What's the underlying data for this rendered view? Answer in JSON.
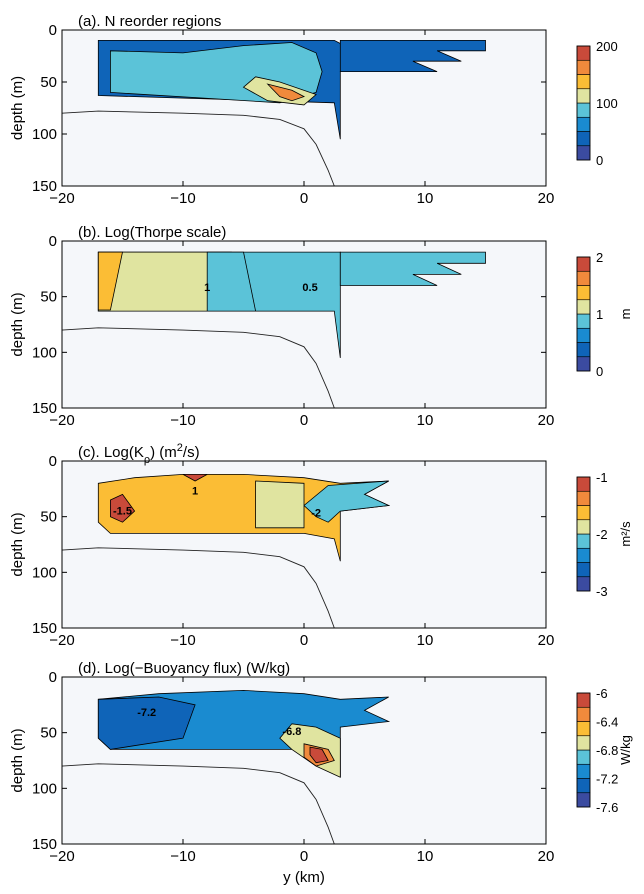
{
  "chart_data": [
    {
      "type": "contour",
      "title": "(a). N reorder regions",
      "ylabel": "depth (m)",
      "xlabel": "",
      "xlim": [
        -20,
        20
      ],
      "ylim": [
        0,
        150
      ],
      "y_reversed": true,
      "xticks": [
        -20,
        -10,
        0,
        10,
        20
      ],
      "yticks": [
        0,
        50,
        100,
        150
      ],
      "colorbar": {
        "ticks": [
          "0",
          "100",
          "200"
        ],
        "range": [
          0,
          200
        ],
        "label": ""
      },
      "contour_labels": [],
      "regions": [
        {
          "level": 40,
          "points": [
            [
              -17,
              10
            ],
            [
              2.5,
              10
            ],
            [
              5,
              25
            ],
            [
              3,
              40
            ],
            [
              3,
              105
            ],
            [
              2.5,
              70
            ],
            [
              -17,
              63
            ]
          ]
        },
        {
          "level": 40,
          "points": [
            [
              3,
              10
            ],
            [
              15,
              10
            ],
            [
              15,
              20
            ],
            [
              11,
              20
            ],
            [
              13,
              30
            ],
            [
              9,
              30
            ],
            [
              11,
              40
            ],
            [
              3,
              40
            ]
          ]
        },
        {
          "level": 80,
          "points": [
            [
              -16,
              20
            ],
            [
              -10,
              22
            ],
            [
              -5,
              15
            ],
            [
              -1,
              12
            ],
            [
              1,
              22
            ],
            [
              1.5,
              40
            ],
            [
              1,
              60
            ],
            [
              -2,
              70
            ],
            [
              -16,
              60
            ]
          ]
        },
        {
          "level": 120,
          "points": [
            [
              -4,
              45
            ],
            [
              -2,
              50
            ],
            [
              1,
              62
            ],
            [
              0,
              72
            ],
            [
              -3,
              68
            ],
            [
              -5,
              55
            ]
          ]
        },
        {
          "level": 160,
          "points": [
            [
              -3,
              52
            ],
            [
              -1,
              58
            ],
            [
              0,
              64
            ],
            [
              -1,
              68
            ],
            [
              -2,
              64
            ]
          ]
        }
      ],
      "bathymetry": [
        [
          -20,
          80
        ],
        [
          -17,
          78
        ],
        [
          -10,
          80
        ],
        [
          -5,
          82
        ],
        [
          -2,
          86
        ],
        [
          0,
          95
        ],
        [
          1,
          110
        ],
        [
          2,
          135
        ],
        [
          2.5,
          150
        ]
      ]
    },
    {
      "type": "contour",
      "title": "(b). Log(Thorpe scale)",
      "ylabel": "depth (m)",
      "xlabel": "",
      "xlim": [
        -20,
        20
      ],
      "ylim": [
        0,
        150
      ],
      "y_reversed": true,
      "xticks": [
        -20,
        -10,
        0,
        10,
        20
      ],
      "yticks": [
        0,
        50,
        100,
        150
      ],
      "colorbar": {
        "ticks": [
          "0",
          "1",
          "2"
        ],
        "range": [
          0,
          2
        ],
        "label": "m"
      },
      "contour_labels": [
        {
          "text": "1",
          "x": -8,
          "y": 45
        },
        {
          "text": "0.5",
          "x": 0.5,
          "y": 45
        }
      ],
      "regions": [
        {
          "level": 0.75,
          "points": [
            [
              -17,
              10
            ],
            [
              3,
              10
            ],
            [
              3,
              105
            ],
            [
              2.5,
              63
            ],
            [
              -17,
              63
            ]
          ]
        },
        {
          "level": 0.75,
          "points": [
            [
              3,
              10
            ],
            [
              15,
              10
            ],
            [
              15,
              20
            ],
            [
              11,
              20
            ],
            [
              13,
              30
            ],
            [
              9,
              30
            ],
            [
              11,
              40
            ],
            [
              3,
              40
            ]
          ]
        },
        {
          "level": 1.1,
          "points": [
            [
              -17,
              10
            ],
            [
              -6,
              10
            ],
            [
              -6,
              63
            ],
            [
              -17,
              63
            ]
          ]
        },
        {
          "level": 0.9,
          "points": [
            [
              -8,
              10
            ],
            [
              -5,
              10
            ],
            [
              -4,
              63
            ],
            [
              -8,
              63
            ]
          ]
        },
        {
          "level": 1.4,
          "points": [
            [
              -17,
              10
            ],
            [
              -15,
              10
            ],
            [
              -16,
              62
            ],
            [
              -17,
              62
            ]
          ]
        }
      ],
      "bathymetry": [
        [
          -20,
          80
        ],
        [
          -17,
          78
        ],
        [
          -10,
          80
        ],
        [
          -5,
          82
        ],
        [
          -2,
          86
        ],
        [
          0,
          95
        ],
        [
          1,
          110
        ],
        [
          2,
          135
        ],
        [
          2.5,
          150
        ]
      ]
    },
    {
      "type": "contour",
      "title": "(c). Log(K",
      "title_sub": "ρ",
      "title_suffix": ") (m",
      "title_sup": "2",
      "title_end": "/s)",
      "ylabel": "depth (m)",
      "xlabel": "",
      "xlim": [
        -20,
        20
      ],
      "ylim": [
        0,
        150
      ],
      "y_reversed": true,
      "xticks": [
        -20,
        -10,
        0,
        10,
        20
      ],
      "yticks": [
        0,
        50,
        100,
        150
      ],
      "colorbar": {
        "ticks": [
          "-3",
          "-2",
          "-1"
        ],
        "range": [
          -3,
          -1
        ],
        "label": "m²/s"
      },
      "contour_labels": [
        {
          "text": "1",
          "x": -9,
          "y": 30
        },
        {
          "text": "-1.5",
          "x": -15,
          "y": 48
        },
        {
          "text": "-2",
          "x": 1,
          "y": 50
        }
      ],
      "regions": [
        {
          "level": -1.6,
          "points": [
            [
              -17,
              20
            ],
            [
              -14,
              15
            ],
            [
              -10,
              12
            ],
            [
              -5,
              12
            ],
            [
              0,
              15
            ],
            [
              3,
              20
            ],
            [
              7,
              18
            ],
            [
              5,
              30
            ],
            [
              7,
              40
            ],
            [
              3,
              45
            ],
            [
              3,
              90
            ],
            [
              2.5,
              70
            ],
            [
              0,
              65
            ],
            [
              -16,
              65
            ],
            [
              -17,
              55
            ]
          ]
        },
        {
          "level": -2.2,
          "points": [
            [
              2,
              22
            ],
            [
              7,
              18
            ],
            [
              5,
              30
            ],
            [
              7,
              40
            ],
            [
              3,
              45
            ],
            [
              2,
              55
            ],
            [
              1,
              50
            ],
            [
              0,
              40
            ]
          ]
        },
        {
          "level": -1.9,
          "points": [
            [
              -4,
              18
            ],
            [
              0,
              20
            ],
            [
              0,
              60
            ],
            [
              -4,
              60
            ]
          ]
        },
        {
          "level": -1.1,
          "points": [
            [
              -16,
              35
            ],
            [
              -15,
              30
            ],
            [
              -14,
              45
            ],
            [
              -15,
              55
            ],
            [
              -16,
              50
            ]
          ]
        },
        {
          "level": -1.1,
          "points": [
            [
              -10,
              12
            ],
            [
              -8,
              12
            ],
            [
              -9,
              18
            ]
          ]
        }
      ],
      "bathymetry": [
        [
          -20,
          80
        ],
        [
          -17,
          78
        ],
        [
          -10,
          80
        ],
        [
          -5,
          82
        ],
        [
          -2,
          86
        ],
        [
          0,
          95
        ],
        [
          1,
          110
        ],
        [
          2,
          135
        ],
        [
          2.5,
          150
        ]
      ]
    },
    {
      "type": "contour",
      "title": "(d). Log(−Buoyancy flux) (W/kg)",
      "ylabel": "depth (m)",
      "xlabel": "y (km)",
      "xlim": [
        -20,
        20
      ],
      "ylim": [
        0,
        150
      ],
      "y_reversed": true,
      "xticks": [
        -20,
        -10,
        0,
        10,
        20
      ],
      "yticks": [
        0,
        50,
        100,
        150
      ],
      "colorbar": {
        "ticks": [
          "-7.6",
          "-7.2",
          "-6.8",
          "-6.4",
          "-6"
        ],
        "range": [
          -7.6,
          -6
        ],
        "label": "W/kg"
      },
      "contour_labels": [
        {
          "text": "-7.2",
          "x": -13,
          "y": 35
        },
        {
          "text": "-6.8",
          "x": -1,
          "y": 52
        }
      ],
      "regions": [
        {
          "level": -7.0,
          "points": [
            [
              -17,
              20
            ],
            [
              -12,
              15
            ],
            [
              -5,
              12
            ],
            [
              0,
              15
            ],
            [
              3,
              20
            ],
            [
              7,
              18
            ],
            [
              5,
              30
            ],
            [
              7,
              40
            ],
            [
              3,
              45
            ],
            [
              3,
              90
            ],
            [
              2.5,
              70
            ],
            [
              0,
              65
            ],
            [
              -16,
              65
            ],
            [
              -17,
              55
            ]
          ]
        },
        {
          "level": -7.3,
          "points": [
            [
              -17,
              20
            ],
            [
              -12,
              18
            ],
            [
              -9,
              25
            ],
            [
              -10,
              55
            ],
            [
              -16,
              65
            ],
            [
              -17,
              55
            ]
          ]
        },
        {
          "level": -6.7,
          "points": [
            [
              -1,
              42
            ],
            [
              1,
              45
            ],
            [
              3,
              55
            ],
            [
              3,
              90
            ],
            [
              1,
              80
            ],
            [
              -1,
              65
            ],
            [
              -2,
              55
            ]
          ]
        },
        {
          "level": -6.3,
          "points": [
            [
              0,
              60
            ],
            [
              2,
              65
            ],
            [
              2.5,
              75
            ],
            [
              1,
              80
            ],
            [
              0,
              72
            ]
          ]
        },
        {
          "level": -6.1,
          "points": [
            [
              0.5,
              63
            ],
            [
              1.5,
              65
            ],
            [
              2,
              75
            ],
            [
              1,
              77
            ],
            [
              0.5,
              70
            ]
          ]
        }
      ],
      "bathymetry": [
        [
          -20,
          80
        ],
        [
          -17,
          78
        ],
        [
          -10,
          80
        ],
        [
          -5,
          82
        ],
        [
          -2,
          86
        ],
        [
          0,
          95
        ],
        [
          1,
          110
        ],
        [
          2,
          135
        ],
        [
          2.5,
          150
        ]
      ]
    }
  ]
}
